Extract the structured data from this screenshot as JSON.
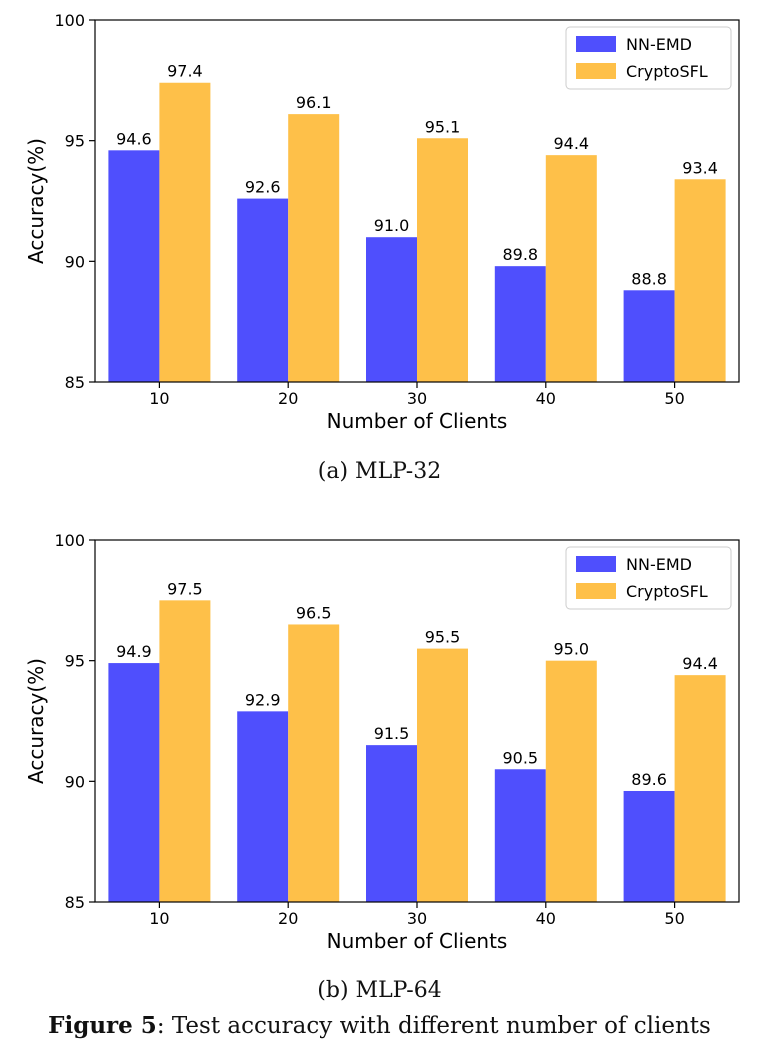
{
  "chart_data": [
    {
      "type": "bar",
      "subcaption": "(a)  MLP-32",
      "categories": [
        "10",
        "20",
        "30",
        "40",
        "50"
      ],
      "series": [
        {
          "name": "NN-EMD",
          "values": [
            94.6,
            92.6,
            91.0,
            89.8,
            88.8
          ],
          "labels": [
            "94.6",
            "92.6",
            "91.0",
            "89.8",
            "88.8"
          ]
        },
        {
          "name": "CryptoSFL",
          "values": [
            97.4,
            96.1,
            95.1,
            94.4,
            93.4
          ],
          "labels": [
            "97.4",
            "96.1",
            "95.1",
            "94.4",
            "93.4"
          ]
        }
      ],
      "xlabel": "Number of Clients",
      "ylabel": "Accuracy(%)",
      "ylim": [
        85,
        100
      ],
      "yticks": [
        "85",
        "90",
        "95",
        "100"
      ],
      "grid": false,
      "legend": "top-right"
    },
    {
      "type": "bar",
      "subcaption": "(b)  MLP-64",
      "categories": [
        "10",
        "20",
        "30",
        "40",
        "50"
      ],
      "series": [
        {
          "name": "NN-EMD",
          "values": [
            94.9,
            92.9,
            91.5,
            90.5,
            89.6
          ],
          "labels": [
            "94.9",
            "92.9",
            "91.5",
            "90.5",
            "89.6"
          ]
        },
        {
          "name": "CryptoSFL",
          "values": [
            97.5,
            96.5,
            95.5,
            95.0,
            94.4
          ],
          "labels": [
            "97.5",
            "96.5",
            "95.5",
            "95.0",
            "94.4"
          ]
        }
      ],
      "xlabel": "Number of Clients",
      "ylabel": "Accuracy(%)",
      "ylim": [
        85,
        100
      ],
      "yticks": [
        "85",
        "90",
        "95",
        "100"
      ],
      "grid": false,
      "legend": "top-right"
    }
  ],
  "colors": {
    "nn_emd": "#4f4ffd",
    "cryptosfl": "#fec049"
  },
  "figure_caption": {
    "label": "Figure 5",
    "text": ": Test accuracy with different number of clients"
  }
}
